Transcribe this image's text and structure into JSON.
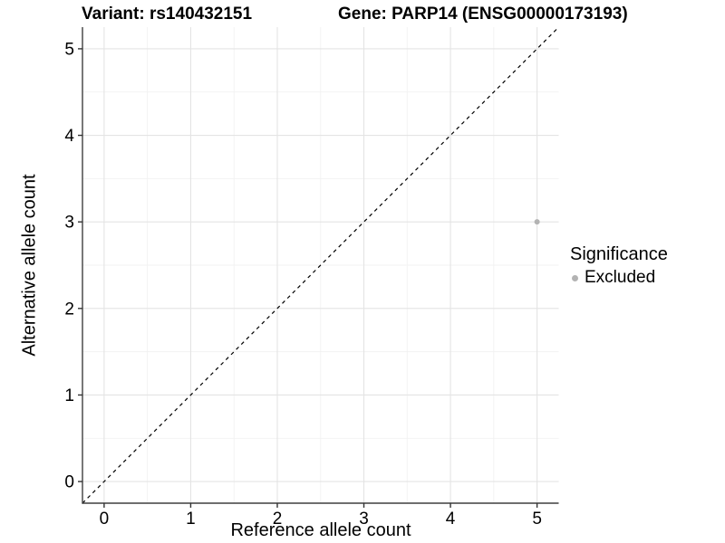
{
  "chart_data": {
    "type": "scatter",
    "title_left": "Variant: rs140432151",
    "title_right": "Gene: PARP14 (ENSG00000173193)",
    "xlabel": "Reference allele count",
    "ylabel": "Alternative allele count",
    "xlim": [
      -0.25,
      5.25
    ],
    "ylim": [
      -0.25,
      5.25
    ],
    "x_ticks": [
      0,
      1,
      2,
      3,
      4,
      5
    ],
    "y_ticks": [
      0,
      1,
      2,
      3,
      4,
      5
    ],
    "x_minor": [
      0.5,
      1.5,
      2.5,
      3.5,
      4.5
    ],
    "y_minor": [
      0.5,
      1.5,
      2.5,
      3.5,
      4.5
    ],
    "grid": "major and minor gridlines on white panel",
    "points": [
      {
        "x": 5,
        "y": 3,
        "series": "Excluded"
      }
    ],
    "identity_line": {
      "slope": 1,
      "intercept": 0,
      "style": "dashed",
      "color": "#000000"
    },
    "legend": {
      "title": "Significance",
      "position": "right",
      "items": [
        {
          "label": "Excluded",
          "color": "#b3b3b3"
        }
      ]
    }
  },
  "colors": {
    "background": "#ffffff",
    "grid_major": "#e4e4e4",
    "grid_minor": "#f2f2f2",
    "axis_line": "#3f3f3f",
    "tick": "#333333",
    "text": "#000000",
    "point": "#b3b3b3"
  }
}
